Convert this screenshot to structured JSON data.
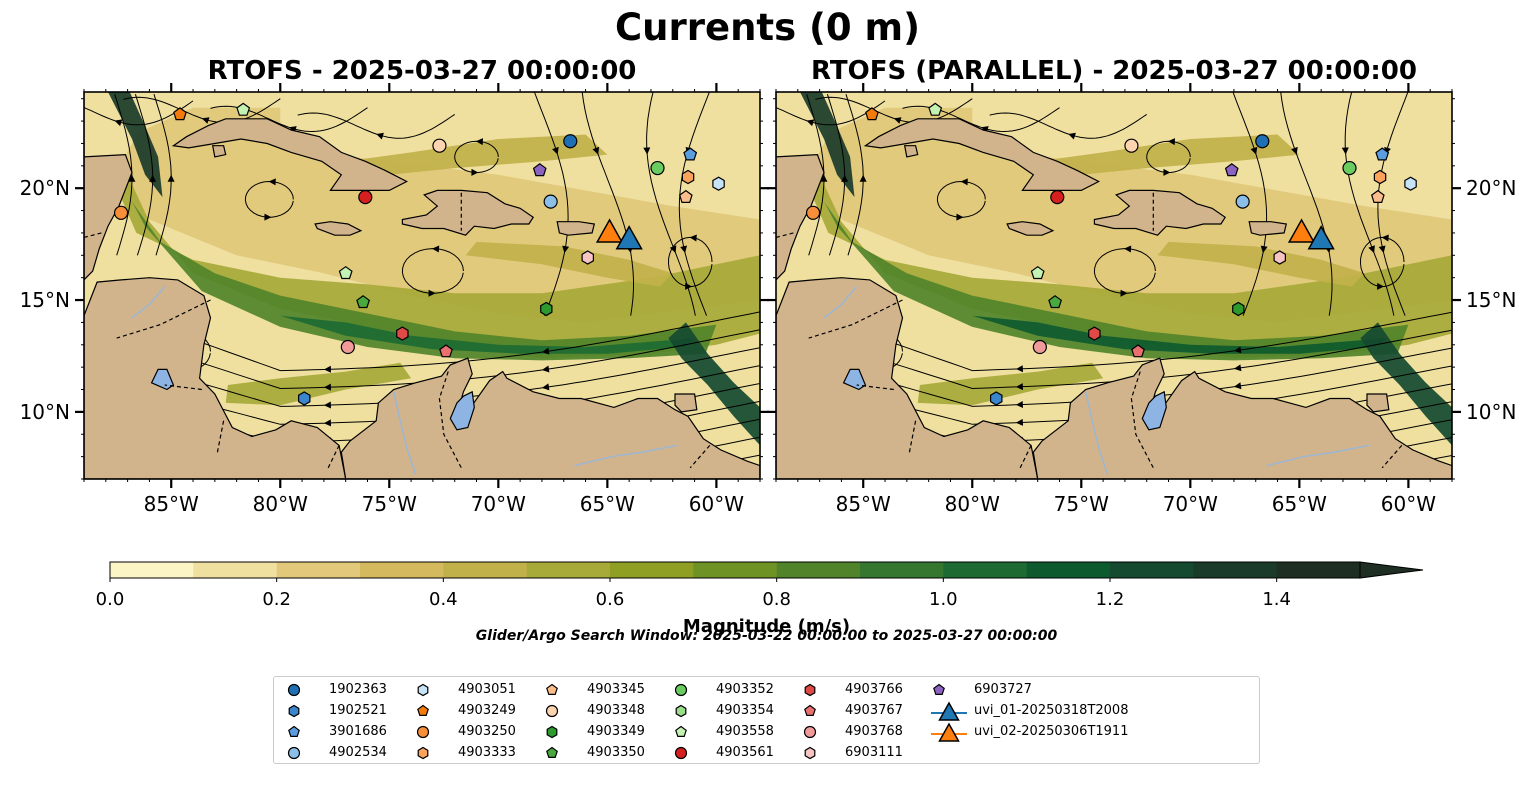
{
  "figure": {
    "suptitle": "Currents (0 m)",
    "panel_titles": [
      "RTOFS - 2025-03-27 00:00:00",
      "RTOFS (PARALLEL) - 2025-03-27 00:00:00"
    ],
    "search_window": "Glider/Argo Search Window: 2025-03-22 00:00:00 to 2025-03-27 00:00:00"
  },
  "colors": {
    "land": "#d2b48c",
    "lake": "#8eb4e3",
    "river": "#9fb6d0",
    "streamline": "#000000",
    "colorbar": [
      "#fbf5c6",
      "#efe0a0",
      "#e1c87a",
      "#d4b95e",
      "#c1b14a",
      "#a7a938",
      "#8f9f24",
      "#6f9224",
      "#51842a",
      "#36772f",
      "#1d6a32",
      "#0e5a2f",
      "#154a30",
      "#1a3b29",
      "#1e2e22"
    ]
  },
  "legend": {
    "items": [
      {
        "label": "1902363",
        "marker": "circle",
        "color": "#1f6fb4"
      },
      {
        "label": "1902521",
        "marker": "hexagon",
        "color": "#3a85cc"
      },
      {
        "label": "3901686",
        "marker": "pentagon",
        "color": "#5a9ee0"
      },
      {
        "label": "4902534",
        "marker": "circle",
        "color": "#8cbfe8"
      },
      {
        "label": "4903051",
        "marker": "hexagon",
        "color": "#c7e3f7"
      },
      {
        "label": "4903249",
        "marker": "pentagon",
        "color": "#f47a0c"
      },
      {
        "label": "4903250",
        "marker": "circle",
        "color": "#f78f3a"
      },
      {
        "label": "4903333",
        "marker": "hexagon",
        "color": "#fba35b"
      },
      {
        "label": "4903345",
        "marker": "pentagon",
        "color": "#fbbe8a"
      },
      {
        "label": "4903348",
        "marker": "circle",
        "color": "#fcd5b0"
      },
      {
        "label": "4903349",
        "marker": "hexagon",
        "color": "#2c9a2c"
      },
      {
        "label": "4903350",
        "marker": "pentagon",
        "color": "#49a93f"
      },
      {
        "label": "4903352",
        "marker": "circle",
        "color": "#6acb61"
      },
      {
        "label": "4903354",
        "marker": "hexagon",
        "color": "#99de8a"
      },
      {
        "label": "4903558",
        "marker": "pentagon",
        "color": "#c3f2b3"
      },
      {
        "label": "4903561",
        "marker": "circle",
        "color": "#d62020"
      },
      {
        "label": "4903766",
        "marker": "hexagon",
        "color": "#df4a46"
      },
      {
        "label": "4903767",
        "marker": "pentagon",
        "color": "#ea7070"
      },
      {
        "label": "4903768",
        "marker": "circle",
        "color": "#f19a9a"
      },
      {
        "label": "6903111",
        "marker": "hexagon",
        "color": "#f7c4c4"
      },
      {
        "label": "6903727",
        "marker": "pentagon",
        "color": "#8c63c0"
      },
      {
        "label": "uvi_01-20250318T2008",
        "marker": "triangle",
        "color": "#1f77b4"
      },
      {
        "label": "uvi_02-20250306T1911",
        "marker": "triangle",
        "color": "#ff7f0e"
      }
    ]
  },
  "chart_data": [
    {
      "type": "heatmap",
      "title": "RTOFS - 2025-03-27 00:00:00",
      "xlabel": "",
      "ylabel": "",
      "xlim": [
        -89,
        -58
      ],
      "ylim": [
        7,
        24.3
      ],
      "x_ticks": [
        "85°W",
        "80°W",
        "75°W",
        "70°W",
        "65°W",
        "60°W"
      ],
      "x_tick_values": [
        -85,
        -80,
        -75,
        -70,
        -65,
        -60
      ],
      "y_ticks": [
        "20°N",
        "15°N",
        "10°N"
      ],
      "y_tick_values": [
        20,
        15,
        10
      ],
      "y_tick_side": "left",
      "grid": false,
      "colorbar": {
        "label": "Magnitude (m/s)",
        "min": 0,
        "max": 1.5,
        "step": 0.1,
        "ticks": [
          "0.0",
          "0.2",
          "0.4",
          "0.6",
          "0.8",
          "1.0",
          "1.2",
          "1.4"
        ],
        "extend": "max"
      },
      "markers": [
        {
          "id": "4903249",
          "lon": -84.6,
          "lat": 23.3
        },
        {
          "id": "4903558",
          "lon": -81.7,
          "lat": 23.5
        },
        {
          "id": "4903348",
          "lon": -72.7,
          "lat": 21.9
        },
        {
          "id": "1902363",
          "lon": -66.7,
          "lat": 22.1
        },
        {
          "id": "3901686",
          "lon": -61.2,
          "lat": 21.5
        },
        {
          "id": "4903352",
          "lon": -62.7,
          "lat": 20.9
        },
        {
          "id": "6903727",
          "lon": -68.1,
          "lat": 20.8
        },
        {
          "id": "4903333",
          "lon": -61.3,
          "lat": 20.5
        },
        {
          "id": "4903051",
          "lon": -59.9,
          "lat": 20.2
        },
        {
          "id": "4903345",
          "lon": -61.4,
          "lat": 19.6
        },
        {
          "id": "4903250",
          "lon": -87.3,
          "lat": 18.9
        },
        {
          "id": "4903561",
          "lon": -76.1,
          "lat": 19.6
        },
        {
          "id": "4902534",
          "lon": -67.6,
          "lat": 19.4
        },
        {
          "id": "6903111",
          "lon": -65.9,
          "lat": 16.9
        },
        {
          "id": "4903558",
          "lon": -77.0,
          "lat": 16.2
        },
        {
          "id": "4903350",
          "lon": -76.2,
          "lat": 14.9
        },
        {
          "id": "4903349",
          "lon": -67.8,
          "lat": 14.6
        },
        {
          "id": "4903766",
          "lon": -74.4,
          "lat": 13.5
        },
        {
          "id": "4903768",
          "lon": -76.9,
          "lat": 12.9
        },
        {
          "id": "4903767",
          "lon": -72.4,
          "lat": 12.7
        },
        {
          "id": "1902521",
          "lon": -78.9,
          "lat": 10.6
        },
        {
          "id": "uvi_02-20250306T1911",
          "lon": -64.9,
          "lat": 18.0
        },
        {
          "id": "uvi_01-20250318T2008",
          "lon": -64.0,
          "lat": 17.7
        }
      ]
    },
    {
      "type": "heatmap",
      "title": "RTOFS (PARALLEL) - 2025-03-27 00:00:00",
      "xlabel": "",
      "ylabel": "",
      "xlim": [
        -89,
        -58
      ],
      "ylim": [
        7,
        24.3
      ],
      "x_ticks": [
        "85°W",
        "80°W",
        "75°W",
        "70°W",
        "65°W",
        "60°W"
      ],
      "x_tick_values": [
        -85,
        -80,
        -75,
        -70,
        -65,
        -60
      ],
      "y_ticks": [
        "20°N",
        "15°N",
        "10°N"
      ],
      "y_tick_values": [
        20,
        15,
        10
      ],
      "y_tick_side": "right",
      "grid": false,
      "colorbar": {
        "label": "Magnitude (m/s)",
        "min": 0,
        "max": 1.5,
        "step": 0.1,
        "ticks": [
          "0.0",
          "0.2",
          "0.4",
          "0.6",
          "0.8",
          "1.0",
          "1.2",
          "1.4"
        ],
        "extend": "max"
      },
      "markers": [
        {
          "id": "4903249",
          "lon": -84.6,
          "lat": 23.3
        },
        {
          "id": "4903558",
          "lon": -81.7,
          "lat": 23.5
        },
        {
          "id": "4903348",
          "lon": -72.7,
          "lat": 21.9
        },
        {
          "id": "1902363",
          "lon": -66.7,
          "lat": 22.1
        },
        {
          "id": "3901686",
          "lon": -61.2,
          "lat": 21.5
        },
        {
          "id": "4903352",
          "lon": -62.7,
          "lat": 20.9
        },
        {
          "id": "6903727",
          "lon": -68.1,
          "lat": 20.8
        },
        {
          "id": "4903333",
          "lon": -61.3,
          "lat": 20.5
        },
        {
          "id": "4903051",
          "lon": -59.9,
          "lat": 20.2
        },
        {
          "id": "4903345",
          "lon": -61.4,
          "lat": 19.6
        },
        {
          "id": "4903250",
          "lon": -87.3,
          "lat": 18.9
        },
        {
          "id": "4903561",
          "lon": -76.1,
          "lat": 19.6
        },
        {
          "id": "4902534",
          "lon": -67.6,
          "lat": 19.4
        },
        {
          "id": "6903111",
          "lon": -65.9,
          "lat": 16.9
        },
        {
          "id": "4903558",
          "lon": -77.0,
          "lat": 16.2
        },
        {
          "id": "4903350",
          "lon": -76.2,
          "lat": 14.9
        },
        {
          "id": "4903349",
          "lon": -67.8,
          "lat": 14.6
        },
        {
          "id": "4903766",
          "lon": -74.4,
          "lat": 13.5
        },
        {
          "id": "4903768",
          "lon": -76.9,
          "lat": 12.9
        },
        {
          "id": "4903767",
          "lon": -72.4,
          "lat": 12.7
        },
        {
          "id": "1902521",
          "lon": -78.9,
          "lat": 10.6
        },
        {
          "id": "uvi_02-20250306T1911",
          "lon": -64.9,
          "lat": 18.0
        },
        {
          "id": "uvi_01-20250318T2008",
          "lon": -64.0,
          "lat": 17.7
        }
      ]
    }
  ]
}
